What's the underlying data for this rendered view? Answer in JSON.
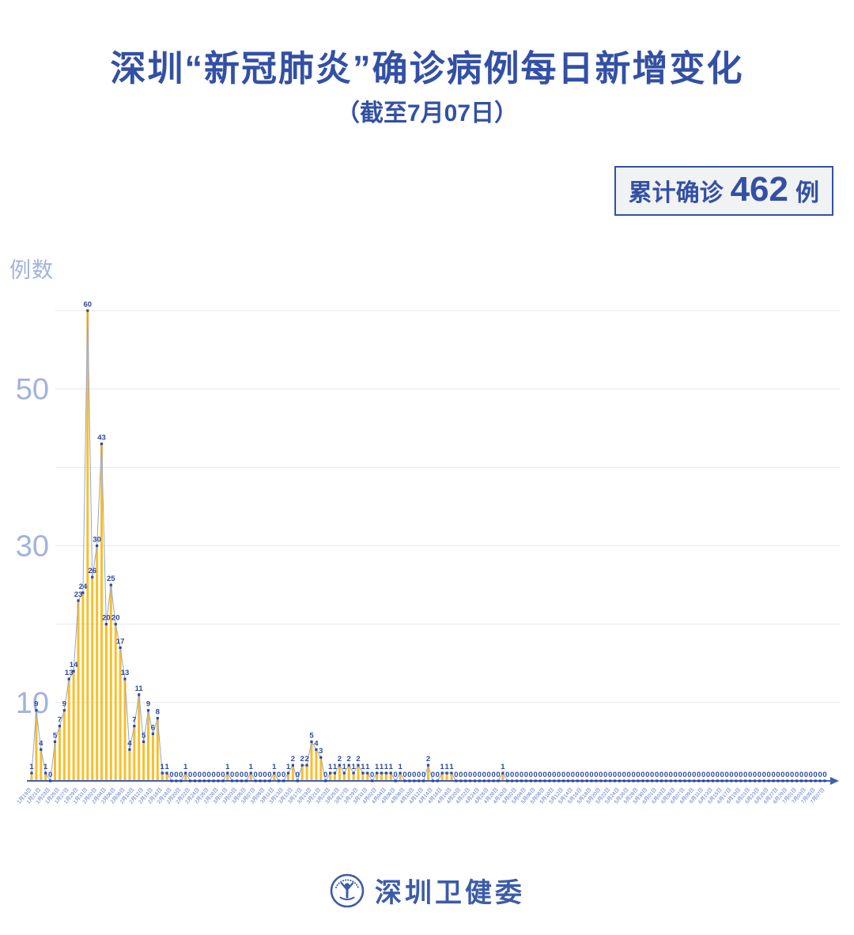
{
  "title": "深圳“新冠肺炎”确诊病例每日新增变化",
  "subtitle": "（截至7月07日）",
  "badge": {
    "prefix": "累计确诊",
    "value": "462",
    "suffix": "例"
  },
  "footer": {
    "logo_icon": "shenzhen-health-commission-emblem",
    "logo_text": "深圳卫健委"
  },
  "colors": {
    "primary-blue": "#3350A5",
    "axis-light": "#A2B2DF",
    "line-blue": "#8FA5DA",
    "point-blue": "#2B499F",
    "bar-yellow": "#FBBE28",
    "grid-gray": "#E8E8E8",
    "axis-blue": "#4160AE",
    "xlabel-blue": "#5676C6",
    "badge-bg": "#F1F2F3",
    "logo-blue": "#3C5BA9"
  },
  "chart_data": {
    "type": "line",
    "style": "spike line with point markers, per-day yellow bars, value label on every point",
    "title": "深圳“新冠肺炎”确诊病例每日新增变化（截至7月07日）",
    "ylabel": "例数",
    "xlabel": "",
    "ylim": [
      0,
      62
    ],
    "yticks": [
      10,
      30,
      50
    ],
    "gridlines": [
      10,
      20,
      30,
      40,
      50,
      60
    ],
    "legend": "none",
    "x_label_every": 2,
    "total_label": "累计确诊 462 例",
    "x": [
      "1月19日",
      "1月20日",
      "1月21日",
      "1月22日",
      "1月23日",
      "1月24日",
      "1月25日",
      "1月26日",
      "1月27日",
      "1月28日",
      "1月29日",
      "1月30日",
      "1月31日",
      "2月01日",
      "2月02日",
      "2月03日",
      "2月04日",
      "2月05日",
      "2月06日",
      "2月07日",
      "2月08日",
      "2月09日",
      "2月10日",
      "2月11日",
      "2月12日",
      "2月13日",
      "2月14日",
      "2月15日",
      "2月16日",
      "2月17日",
      "2月18日",
      "2月19日",
      "2月20日",
      "2月21日",
      "2月22日",
      "2月23日",
      "2月24日",
      "2月25日",
      "2月26日",
      "2月27日",
      "2月28日",
      "2月29日",
      "3月01日",
      "3月02日",
      "3月03日",
      "3月04日",
      "3月05日",
      "3月06日",
      "3月07日",
      "3月08日",
      "3月09日",
      "3月10日",
      "3月11日",
      "3月12日",
      "3月13日",
      "3月14日",
      "3月15日",
      "3月16日",
      "3月17日",
      "3月18日",
      "3月19日",
      "3月20日",
      "3月21日",
      "3月22日",
      "3月23日",
      "3月24日",
      "3月25日",
      "3月26日",
      "3月27日",
      "3月28日",
      "3月29日",
      "3月30日",
      "3月31日",
      "4月01日",
      "4月02日",
      "4月03日",
      "4月04日",
      "4月05日",
      "4月06日",
      "4月07日",
      "4月08日",
      "4月09日",
      "4月10日",
      "4月11日",
      "4月12日",
      "4月13日",
      "4月14日",
      "4月15日",
      "4月16日",
      "4月17日",
      "4月18日",
      "4月19日",
      "4月20日",
      "4月21日",
      "4月22日",
      "4月23日",
      "4月24日",
      "4月25日",
      "4月26日",
      "4月27日",
      "4月28日",
      "4月29日",
      "4月30日",
      "5月01日",
      "5月02日",
      "5月03日",
      "5月04日",
      "5月05日",
      "5月06日",
      "5月07日",
      "5月08日",
      "5月09日",
      "5月10日",
      "5月11日",
      "5月12日",
      "5月13日",
      "5月14日",
      "5月15日",
      "5月16日",
      "5月17日",
      "5月18日",
      "5月19日",
      "5月20日",
      "5月21日",
      "5月22日",
      "5月23日",
      "5月24日",
      "5月25日",
      "5月26日",
      "5月27日",
      "5月28日",
      "5月29日",
      "5月30日",
      "5月31日",
      "6月01日",
      "6月02日",
      "6月03日",
      "6月04日",
      "6月05日",
      "6月06日",
      "6月07日",
      "6月08日",
      "6月09日",
      "6月10日",
      "6月11日",
      "6月12日",
      "6月13日",
      "6月14日",
      "6月15日",
      "6月16日",
      "6月17日",
      "6月18日",
      "6月19日",
      "6月20日",
      "6月21日",
      "6月22日",
      "6月23日",
      "6月24日",
      "6月25日",
      "6月26日",
      "6月27日",
      "6月28日",
      "6月29日",
      "6月30日",
      "7月01日",
      "7月02日",
      "7月03日",
      "7月04日",
      "7月05日",
      "7月06日",
      "7月07日"
    ],
    "values": [
      1,
      9,
      4,
      1,
      0,
      5,
      7,
      9,
      13,
      14,
      23,
      24,
      60,
      26,
      30,
      43,
      20,
      25,
      20,
      17,
      13,
      4,
      7,
      11,
      5,
      9,
      6,
      8,
      1,
      1,
      0,
      0,
      0,
      1,
      0,
      0,
      0,
      0,
      0,
      0,
      0,
      0,
      1,
      0,
      0,
      0,
      0,
      1,
      0,
      0,
      0,
      0,
      1,
      0,
      0,
      1,
      2,
      0,
      2,
      2,
      5,
      4,
      3,
      0,
      1,
      1,
      2,
      1,
      2,
      1,
      2,
      1,
      1,
      0,
      1,
      1,
      1,
      1,
      0,
      1,
      0,
      0,
      0,
      0,
      0,
      2,
      0,
      0,
      1,
      1,
      1,
      0,
      0,
      0,
      0,
      0,
      0,
      0,
      0,
      0,
      0,
      1,
      0,
      0,
      0,
      0,
      0,
      0,
      0,
      0,
      0,
      0,
      0,
      0,
      0,
      0,
      0,
      0,
      0,
      0,
      0,
      0,
      0,
      0,
      0,
      0,
      0,
      0,
      0,
      0,
      0,
      0,
      0,
      0,
      0,
      0,
      0,
      0,
      0,
      0,
      0,
      0,
      0,
      0,
      0,
      0,
      0,
      0,
      0,
      0,
      0,
      0,
      0,
      0,
      0,
      0,
      0,
      0,
      0,
      0,
      0,
      0,
      0,
      0,
      0,
      0,
      0,
      0,
      0,
      0,
      0
    ]
  }
}
